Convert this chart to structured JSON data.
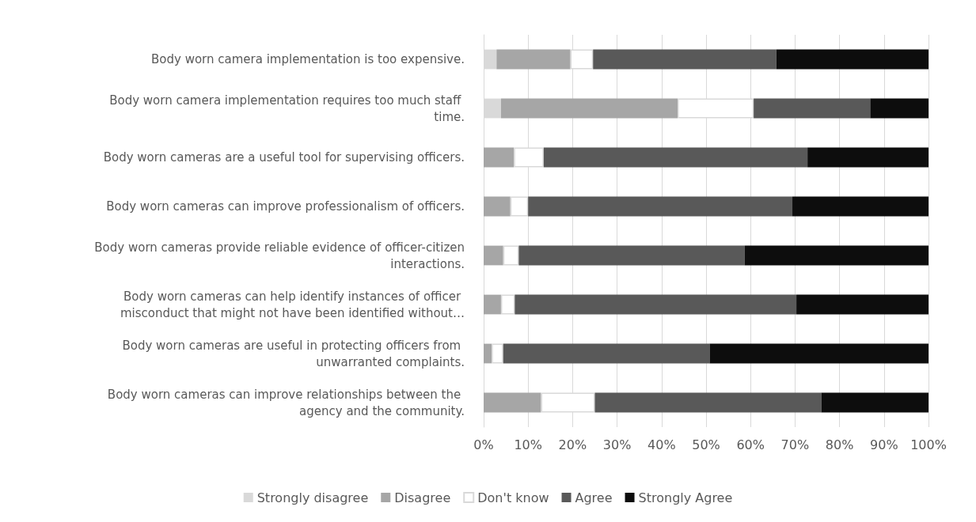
{
  "chart_data": {
    "type": "bar",
    "orientation": "horizontal",
    "stacked": true,
    "categories": [
      "Body worn camera implementation is too expensive.",
      "Body worn camera implementation requires too much staff time.",
      "Body worn cameras are a useful tool for supervising officers.",
      "Body worn cameras can improve professionalism of officers.",
      "Body worn cameras provide reliable evidence of officer-citizen interactions.",
      "Body worn cameras can help identify instances of officer misconduct that might not have been identified without…",
      "Body worn cameras are useful in protecting officers from unwarranted complaints.",
      "Body worn cameras can improve relationships between the agency and the community."
    ],
    "series": [
      {
        "name": "Strongly disagree",
        "color": "#d9d9d9",
        "values": [
          2.9,
          3.9,
          0,
          0,
          null,
          0,
          0,
          0
        ]
      },
      {
        "name": "Disagree",
        "color": "#a6a6a6",
        "values": [
          16.6,
          39.7,
          6.8,
          6.0,
          4.4,
          3.9,
          1.8,
          12.9
        ]
      },
      {
        "name": "Don't know",
        "color": "#ffffff",
        "values": [
          5.1,
          17.1,
          6.7,
          4.0,
          3.5,
          3.1,
          2.6,
          12.1
        ]
      },
      {
        "name": "Agree",
        "color": "#595959",
        "values": [
          41.2,
          26.2,
          59.3,
          59.4,
          50.8,
          63.3,
          46.4,
          50.9
        ]
      },
      {
        "name": "Strongly Agree",
        "color": "#0d0d0d",
        "values": [
          34.2,
          13.1,
          27.2,
          30.6,
          41.3,
          29.7,
          49.2,
          24.1
        ]
      }
    ],
    "xlim": [
      0,
      100
    ],
    "xticks": [
      {
        "value": 0,
        "label": "0%"
      },
      {
        "value": 10,
        "label": "10%"
      },
      {
        "value": 20,
        "label": "20%"
      },
      {
        "value": 30,
        "label": "30%"
      },
      {
        "value": 40,
        "label": "40%"
      },
      {
        "value": 50,
        "label": "50%"
      },
      {
        "value": 60,
        "label": "60%"
      },
      {
        "value": 70,
        "label": "70%"
      },
      {
        "value": 80,
        "label": "80%"
      },
      {
        "value": 90,
        "label": "90%"
      },
      {
        "value": 100,
        "label": "100%"
      }
    ],
    "grid": "x",
    "legend": "bottom"
  }
}
